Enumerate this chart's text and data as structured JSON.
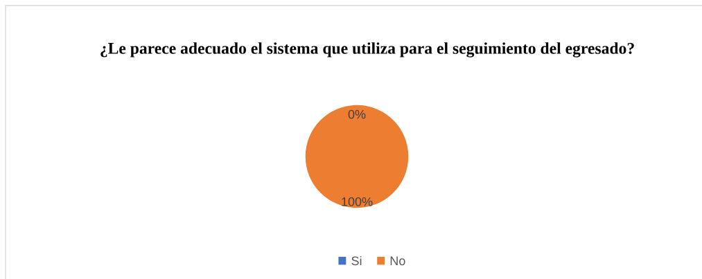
{
  "chart_data": {
    "type": "pie",
    "title": "¿Le parece adecuado el sistema que utiliza para el seguimiento del egresado?",
    "categories": [
      "Si",
      "No"
    ],
    "values": [
      0,
      100
    ],
    "colors": [
      "#4472c4",
      "#ed7d31"
    ],
    "value_labels": [
      "0%",
      "100%"
    ],
    "legend": "bottom"
  }
}
